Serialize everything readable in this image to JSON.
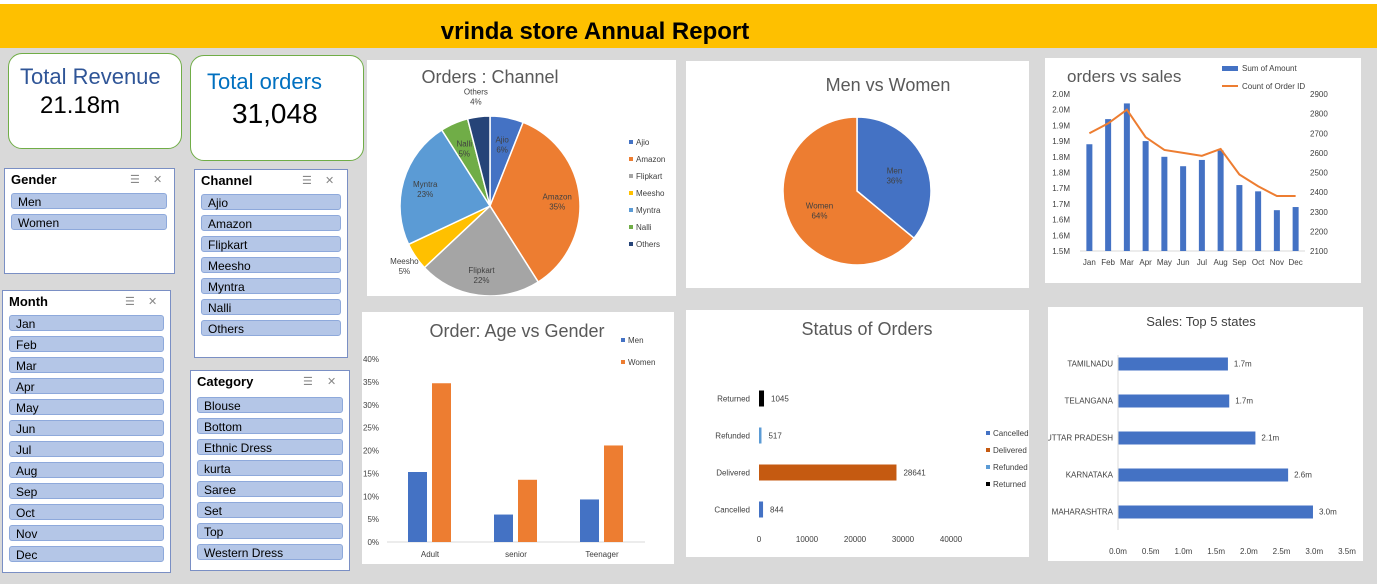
{
  "title": "vrinda store Annual Report",
  "kpis": {
    "revenue_label": "Total Revenue",
    "revenue_value": "21.18m",
    "orders_label": "Total orders",
    "orders_value": "31,048"
  },
  "slicers": {
    "gender": {
      "title": "Gender",
      "items": [
        "Men",
        "Women"
      ]
    },
    "channel": {
      "title": "Channel",
      "items": [
        "Ajio",
        "Amazon",
        "Flipkart",
        "Meesho",
        "Myntra",
        "Nalli",
        "Others"
      ]
    },
    "month": {
      "title": "Month",
      "items": [
        "Jan",
        "Feb",
        "Mar",
        "Apr",
        "May",
        "Jun",
        "Jul",
        "Aug",
        "Sep",
        "Oct",
        "Nov",
        "Dec"
      ]
    },
    "category": {
      "title": "Category",
      "items": [
        "Blouse",
        "Bottom",
        "Ethnic Dress",
        "kurta",
        "Saree",
        "Set",
        "Top",
        "Western Dress"
      ]
    }
  },
  "colors": {
    "blue": "#4472c4",
    "orange": "#ed7d31",
    "gray": "#a5a5a5",
    "yellow": "#ffc000",
    "lightblue": "#5b9bd5",
    "green": "#70ad47",
    "navy": "#264478",
    "darkorange": "#c55a11",
    "black": "#000000"
  },
  "chart_data": [
    {
      "type": "pie",
      "title": "Orders : Channel",
      "categories": [
        "Ajio",
        "Amazon",
        "Flipkart",
        "Meesho",
        "Myntra",
        "Nalli",
        "Others"
      ],
      "values": [
        6,
        35,
        22,
        5,
        23,
        5,
        4
      ],
      "labels": [
        "6%",
        "35%",
        "22%",
        "5%",
        "23%",
        "5%",
        "4%"
      ],
      "legend": [
        "Ajio",
        "Amazon",
        "Flipkart",
        "Meesho",
        "Myntra",
        "Nalli",
        "Others"
      ],
      "legend_position": "right"
    },
    {
      "type": "pie",
      "title": "Men vs Women",
      "categories": [
        "Men",
        "Women"
      ],
      "values": [
        36,
        64
      ],
      "labels": [
        "36%",
        "64%"
      ]
    },
    {
      "type": "bar",
      "title": "orders vs sales",
      "categories": [
        "Jan",
        "Feb",
        "Mar",
        "Apr",
        "May",
        "Jun",
        "Jul",
        "Aug",
        "Sep",
        "Oct",
        "Nov",
        "Dec"
      ],
      "series": [
        {
          "name": "Sum of Amount",
          "type": "bar",
          "values": [
            1.84,
            1.92,
            1.97,
            1.85,
            1.8,
            1.77,
            1.79,
            1.82,
            1.71,
            1.69,
            1.63,
            1.64
          ]
        },
        {
          "name": "Count of Order ID",
          "type": "line",
          "axis": "secondary",
          "values": [
            2700,
            2750,
            2820,
            2680,
            2615,
            2600,
            2585,
            2620,
            2490,
            2430,
            2380,
            2380
          ]
        }
      ],
      "ylim": [
        1.5,
        2.0
      ],
      "yticks": [
        "1.5M",
        "1.6M",
        "1.6M",
        "1.7M",
        "1.7M",
        "1.8M",
        "1.8M",
        "1.9M",
        "1.9M",
        "2.0M",
        "2.0M"
      ],
      "y2lim": [
        2100,
        2900
      ],
      "y2ticks": [
        "2100",
        "2200",
        "2300",
        "2400",
        "2500",
        "2600",
        "2700",
        "2800",
        "2900"
      ],
      "legend_position": "top-right"
    },
    {
      "type": "bar",
      "title": "Order: Age vs Gender",
      "categories": [
        "Adult",
        "senior",
        "Teenager"
      ],
      "series": [
        {
          "name": "Men",
          "values": [
            15.3,
            6,
            9.3
          ]
        },
        {
          "name": "Women",
          "values": [
            34.7,
            13.6,
            21.1
          ]
        }
      ],
      "ylim": [
        0,
        40
      ],
      "yticks": [
        "0%",
        "5%",
        "10%",
        "15%",
        "20%",
        "25%",
        "30%",
        "35%",
        "40%"
      ],
      "legend_position": "top-right"
    },
    {
      "type": "bar",
      "orientation": "horizontal",
      "title": "Status of Orders",
      "categories": [
        "Returned",
        "Refunded",
        "Delivered",
        "Cancelled"
      ],
      "values": [
        1045,
        517,
        28641,
        844
      ],
      "labels": [
        "1045",
        "517",
        "28641",
        "844"
      ],
      "xlim": [
        0,
        40000
      ],
      "xticks": [
        "0",
        "10000",
        "20000",
        "30000",
        "40000"
      ],
      "legend": [
        "Cancelled",
        "Delivered",
        "Refunded",
        "Returned"
      ],
      "legend_position": "right"
    },
    {
      "type": "bar",
      "orientation": "horizontal",
      "title": "Sales:  Top 5 states",
      "categories": [
        "TAMILNADU",
        "TELANGANA",
        "UTTAR PRADESH",
        "KARNATAKA",
        "MAHARASHTRA"
      ],
      "values": [
        1.68,
        1.7,
        2.1,
        2.6,
        2.98
      ],
      "labels": [
        "1.7m",
        "1.7m",
        "2.1m",
        "2.6m",
        "3.0m"
      ],
      "xlim": [
        0,
        3.5
      ],
      "xticks": [
        "0.0m",
        "0.5m",
        "1.0m",
        "1.5m",
        "2.0m",
        "2.5m",
        "3.0m",
        "3.5m"
      ]
    }
  ]
}
